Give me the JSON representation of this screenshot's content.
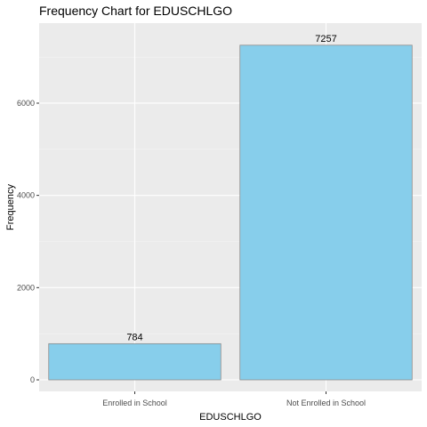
{
  "chart_data": {
    "type": "bar",
    "title": "Frequency Chart for EDUSCHLGO",
    "xlabel": "EDUSCHLGO",
    "ylabel": "Frequency",
    "categories": [
      "Enrolled in School",
      "Not Enrolled in School"
    ],
    "values": [
      784,
      7257
    ],
    "data_labels": [
      "784",
      "7257"
    ],
    "ylim": [
      0,
      7620
    ],
    "yticks": [
      0,
      2000,
      4000,
      6000
    ],
    "ytick_labels": [
      "0",
      "2000",
      "4000",
      "6000"
    ],
    "grid": true,
    "legend": "none",
    "colors": {
      "bar_fill": "#87CEEB",
      "bar_stroke": "#8c8c8c",
      "panel_bg": "#EBEBEB",
      "grid_major": "#ffffff",
      "grid_minor": "#f5f5f5"
    }
  }
}
